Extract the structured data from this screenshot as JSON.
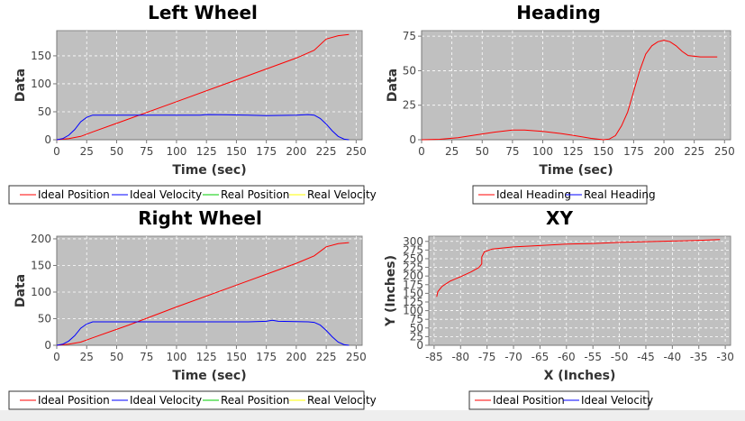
{
  "chart_data": [
    {
      "type": "line",
      "title": "Left Wheel",
      "xlabel": "Time (sec)",
      "ylabel": "Data",
      "xlim": [
        0,
        255
      ],
      "ylim": [
        0,
        195
      ],
      "xticks": [
        0,
        25,
        50,
        75,
        100,
        125,
        150,
        175,
        200,
        225,
        250
      ],
      "yticks": [
        0,
        50,
        100,
        150
      ],
      "legend_placement": "bottom",
      "grid": true,
      "legend": [
        "Ideal  Position",
        "Ideal  Velocity",
        "Real  Position",
        "Real  Velocity"
      ],
      "series": [
        {
          "name": "Ideal  Position",
          "color": "#ff0000",
          "points": [
            [
              0,
              0
            ],
            [
              10,
              2
            ],
            [
              20,
              6
            ],
            [
              30,
              14
            ],
            [
              60,
              37
            ],
            [
              100,
              68
            ],
            [
              150,
              107
            ],
            [
              200,
              146
            ],
            [
              215,
              160
            ],
            [
              225,
              180
            ],
            [
              235,
              186
            ],
            [
              244,
              188
            ]
          ]
        },
        {
          "name": "Ideal  Velocity",
          "color": "#0000ff",
          "points": [
            [
              0,
              0
            ],
            [
              5,
              2
            ],
            [
              10,
              8
            ],
            [
              15,
              18
            ],
            [
              20,
              32
            ],
            [
              25,
              40
            ],
            [
              30,
              44
            ],
            [
              120,
              44
            ],
            [
              125,
              45
            ],
            [
              160,
              44
            ],
            [
              175,
              43
            ],
            [
              200,
              44
            ],
            [
              210,
              45
            ],
            [
              215,
              44
            ],
            [
              220,
              38
            ],
            [
              225,
              28
            ],
            [
              230,
              16
            ],
            [
              235,
              6
            ],
            [
              240,
              1
            ],
            [
              244,
              0
            ]
          ]
        },
        {
          "name": "Real  Position",
          "color": "#00cc00",
          "points": []
        },
        {
          "name": "Real  Velocity",
          "color": "#ffff00",
          "points": []
        }
      ]
    },
    {
      "type": "line",
      "title": "Heading",
      "xlabel": "Time (sec)",
      "ylabel": "Data",
      "xlim": [
        0,
        255
      ],
      "ylim": [
        0,
        79
      ],
      "xticks": [
        0,
        25,
        50,
        75,
        100,
        125,
        150,
        175,
        200,
        225,
        250
      ],
      "yticks": [
        0,
        25,
        50,
        75
      ],
      "legend_placement": "bottom",
      "grid": true,
      "legend": [
        "Ideal Heading",
        "Real Heading"
      ],
      "series": [
        {
          "name": "Ideal Heading",
          "color": "#ff0000",
          "points": [
            [
              0,
              0
            ],
            [
              15,
              0.3
            ],
            [
              30,
              1.5
            ],
            [
              45,
              3.5
            ],
            [
              60,
              5.5
            ],
            [
              75,
              7
            ],
            [
              85,
              7
            ],
            [
              100,
              6
            ],
            [
              115,
              4.5
            ],
            [
              130,
              2.5
            ],
            [
              140,
              1
            ],
            [
              150,
              0
            ],
            [
              155,
              0.5
            ],
            [
              160,
              3
            ],
            [
              165,
              10
            ],
            [
              170,
              20
            ],
            [
              175,
              35
            ],
            [
              180,
              50
            ],
            [
              185,
              62
            ],
            [
              190,
              68
            ],
            [
              195,
              71
            ],
            [
              200,
              72
            ],
            [
              205,
              71
            ],
            [
              210,
              68
            ],
            [
              215,
              64
            ],
            [
              220,
              61
            ],
            [
              230,
              60
            ],
            [
              244,
              60
            ]
          ]
        },
        {
          "name": "Real Heading",
          "color": "#0000ff",
          "points": []
        }
      ]
    },
    {
      "type": "line",
      "title": "Right Wheel",
      "xlabel": "Time (sec)",
      "ylabel": "Data",
      "xlim": [
        0,
        255
      ],
      "ylim": [
        0,
        205
      ],
      "xticks": [
        0,
        25,
        50,
        75,
        100,
        125,
        150,
        175,
        200,
        225,
        250
      ],
      "yticks": [
        0,
        50,
        100,
        150,
        200
      ],
      "legend_placement": "bottom",
      "grid": true,
      "legend": [
        "Ideal  Position",
        "Ideal  Velocity",
        "Real  Position",
        "Real  Velocity"
      ],
      "series": [
        {
          "name": "Ideal  Position",
          "color": "#ff0000",
          "points": [
            [
              0,
              0
            ],
            [
              10,
              2
            ],
            [
              20,
              6
            ],
            [
              30,
              14
            ],
            [
              60,
              38
            ],
            [
              100,
              72
            ],
            [
              150,
              113
            ],
            [
              200,
              154
            ],
            [
              215,
              168
            ],
            [
              225,
              185
            ],
            [
              235,
              191
            ],
            [
              244,
              193
            ]
          ]
        },
        {
          "name": "Ideal  Velocity",
          "color": "#0000ff",
          "points": [
            [
              0,
              0
            ],
            [
              5,
              2
            ],
            [
              10,
              8
            ],
            [
              15,
              18
            ],
            [
              20,
              32
            ],
            [
              25,
              40
            ],
            [
              30,
              44
            ],
            [
              160,
              44
            ],
            [
              175,
              45
            ],
            [
              180,
              47
            ],
            [
              185,
              45
            ],
            [
              210,
              44
            ],
            [
              215,
              43
            ],
            [
              220,
              38
            ],
            [
              225,
              28
            ],
            [
              230,
              16
            ],
            [
              235,
              6
            ],
            [
              240,
              1
            ],
            [
              244,
              0
            ]
          ]
        },
        {
          "name": "Real  Position",
          "color": "#00cc00",
          "points": []
        },
        {
          "name": "Real  Velocity",
          "color": "#ffff00",
          "points": []
        }
      ]
    },
    {
      "type": "line",
      "title": "XY",
      "xlabel": "X (Inches)",
      "ylabel": "Y (Inches)",
      "xlim": [
        -86,
        -29
      ],
      "ylim": [
        0,
        315
      ],
      "xticks": [
        -85,
        -80,
        -75,
        -70,
        -65,
        -60,
        -55,
        -50,
        -45,
        -40,
        -35,
        -30
      ],
      "yticks": [
        0,
        25,
        50,
        75,
        100,
        125,
        150,
        175,
        200,
        225,
        250,
        275,
        300
      ],
      "legend_placement": "bottom",
      "grid": true,
      "legend": [
        "Ideal  Position",
        "Ideal  Velocity"
      ],
      "series": [
        {
          "name": "Ideal  Position",
          "color": "#ff0000",
          "points": [
            [
              -84.5,
              140
            ],
            [
              -84.3,
              155
            ],
            [
              -83.5,
              170
            ],
            [
              -82,
              185
            ],
            [
              -80,
              198
            ],
            [
              -78,
              212
            ],
            [
              -76.5,
              225
            ],
            [
              -76,
              235
            ],
            [
              -76,
              255
            ],
            [
              -75.5,
              270
            ],
            [
              -74,
              278
            ],
            [
              -70,
              284
            ],
            [
              -65,
              288
            ],
            [
              -60,
              292
            ],
            [
              -55,
              294
            ],
            [
              -50,
              297
            ],
            [
              -45,
              299
            ],
            [
              -40,
              301
            ],
            [
              -35,
              303
            ],
            [
              -31,
              305
            ]
          ]
        },
        {
          "name": "Ideal  Velocity",
          "color": "#0000ff",
          "points": []
        }
      ]
    }
  ]
}
